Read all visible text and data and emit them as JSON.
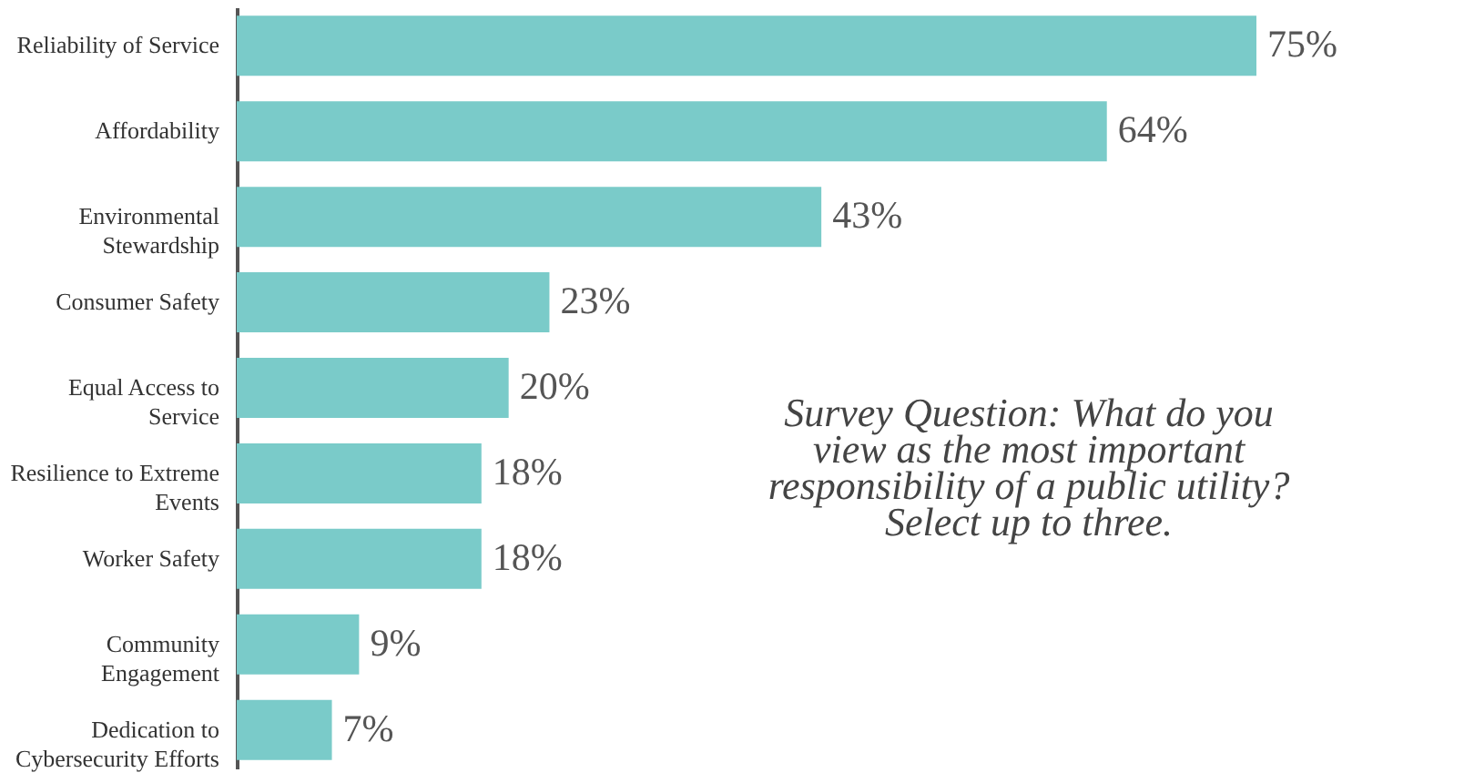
{
  "chart_data": {
    "type": "bar",
    "orientation": "horizontal",
    "categories": [
      "Reliability of Service",
      "Affordability",
      "Environmental\nStewardship",
      "Consumer Safety",
      "Equal Access to\nService",
      "Resilience to Extreme\nEvents",
      "Worker Safety",
      "Community\nEngagement",
      "Dedication to\nCybersecurity Efforts"
    ],
    "values": [
      75,
      64,
      43,
      23,
      20,
      18,
      18,
      9,
      7
    ],
    "value_labels": [
      "75%",
      "64%",
      "43%",
      "23%",
      "20%",
      "18%",
      "18%",
      "9%",
      "7%"
    ],
    "color": "#7acbc9",
    "annotations": [
      "Survey Question: What do you\nview as the most important\nresponsibility of a public utility?\nSelect up to three."
    ]
  }
}
